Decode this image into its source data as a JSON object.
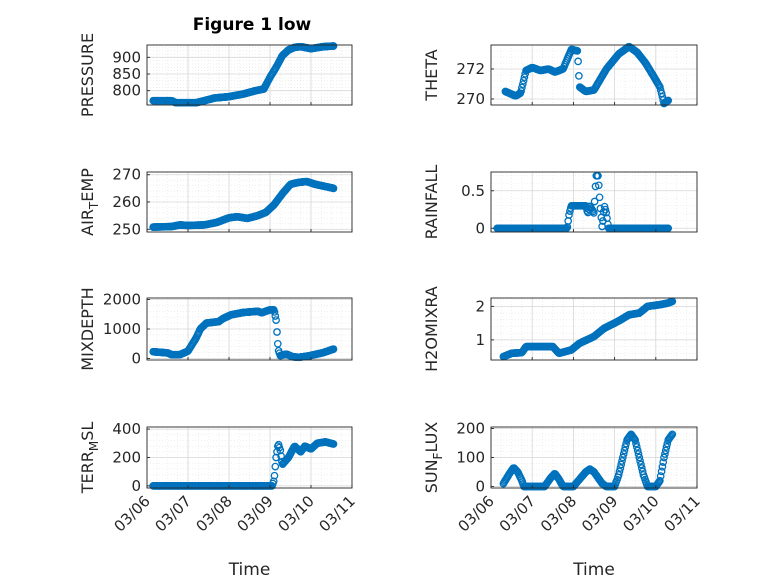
{
  "figure": {
    "title": "Figure 1 low",
    "marker_color": "#0072BD",
    "axis_color": "#262626",
    "grid_color": "#dcdcdc"
  },
  "chart_data": [
    {
      "type": "scatter",
      "title": "Figure 1 low",
      "ylabel": "PRESSURE",
      "ylabel_sub": [],
      "ylim": [
        757,
        937
      ],
      "yticks": [
        800,
        850,
        900
      ],
      "ytick_labels": [
        "800",
        "850",
        "900"
      ],
      "xlim": [
        0,
        5
      ],
      "xticks": [
        0,
        1,
        2,
        3,
        4,
        5
      ],
      "xtick_labels": [],
      "xlabel": "",
      "grid": true,
      "breaks": [
        [
          0.15,
          770
        ],
        [
          0.6,
          770
        ],
        [
          0.7,
          764
        ],
        [
          1.2,
          764
        ],
        [
          1.4,
          770
        ],
        [
          1.65,
          778
        ],
        [
          2.0,
          782
        ],
        [
          2.35,
          790
        ],
        [
          2.65,
          800
        ],
        [
          2.85,
          805
        ],
        [
          3.0,
          840
        ],
        [
          3.15,
          870
        ],
        [
          3.3,
          905
        ],
        [
          3.45,
          922
        ],
        [
          3.6,
          930
        ],
        [
          3.75,
          932
        ],
        [
          4.0,
          926
        ],
        [
          4.3,
          932
        ],
        [
          4.55,
          934
        ]
      ]
    },
    {
      "type": "scatter",
      "title": "",
      "ylabel": "THETA",
      "ylabel_sub": [],
      "ylim": [
        269.6,
        273.6
      ],
      "yticks": [
        270,
        272
      ],
      "ytick_labels": [
        "270",
        "272"
      ],
      "xlim": [
        0,
        5
      ],
      "xticks": [
        0,
        1,
        2,
        3,
        4,
        5
      ],
      "xtick_labels": [],
      "xlabel": "",
      "grid": true,
      "breaks": [
        [
          0.35,
          270.5
        ],
        [
          0.6,
          270.2
        ],
        [
          0.72,
          270.4
        ],
        [
          0.85,
          271.9
        ],
        [
          1.0,
          272.1
        ],
        [
          1.2,
          271.9
        ],
        [
          1.4,
          272.0
        ],
        [
          1.55,
          271.8
        ],
        [
          1.75,
          272.0
        ],
        [
          1.95,
          273.3
        ],
        [
          2.1,
          273.2
        ],
        [
          2.15,
          270.8
        ],
        [
          2.3,
          270.5
        ],
        [
          2.5,
          270.6
        ],
        [
          2.8,
          272.0
        ],
        [
          3.1,
          273.0
        ],
        [
          3.35,
          273.5
        ],
        [
          3.55,
          273.1
        ],
        [
          3.75,
          272.4
        ],
        [
          3.95,
          271.5
        ],
        [
          4.1,
          270.8
        ],
        [
          4.2,
          269.7
        ],
        [
          4.3,
          269.9
        ]
      ]
    },
    {
      "type": "scatter",
      "title": "",
      "ylabel": "AIR",
      "ylabel_sub": [
        "T",
        "EMP"
      ],
      "ylim": [
        249,
        271
      ],
      "yticks": [
        250,
        260,
        270
      ],
      "ytick_labels": [
        "250",
        "260",
        "270"
      ],
      "xlim": [
        0,
        5
      ],
      "xticks": [
        0,
        1,
        2,
        3,
        4,
        5
      ],
      "xtick_labels": [],
      "xlabel": "",
      "grid": true,
      "breaks": [
        [
          0.15,
          250.8
        ],
        [
          0.6,
          251.0
        ],
        [
          0.8,
          251.6
        ],
        [
          1.0,
          251.4
        ],
        [
          1.4,
          251.6
        ],
        [
          1.7,
          252.5
        ],
        [
          2.0,
          254.2
        ],
        [
          2.2,
          254.6
        ],
        [
          2.45,
          254.0
        ],
        [
          2.7,
          255.0
        ],
        [
          2.9,
          256.2
        ],
        [
          3.1,
          259.0
        ],
        [
          3.3,
          263.0
        ],
        [
          3.5,
          266.5
        ],
        [
          3.7,
          267.2
        ],
        [
          3.9,
          267.5
        ],
        [
          4.1,
          266.5
        ],
        [
          4.5,
          265.2
        ],
        [
          4.55,
          265.0
        ]
      ]
    },
    {
      "type": "scatter",
      "title": "",
      "ylabel": "RAINFALL",
      "ylabel_sub": [],
      "ylim": [
        -0.05,
        0.75
      ],
      "yticks": [
        0,
        0.5
      ],
      "ytick_labels": [
        "0",
        "0.5"
      ],
      "xlim": [
        0,
        5
      ],
      "xticks": [
        0,
        1,
        2,
        3,
        4,
        5
      ],
      "xtick_labels": [],
      "xlabel": "",
      "grid": true,
      "breaks": [
        [
          0.15,
          0
        ],
        [
          1.85,
          0
        ],
        [
          1.9,
          0.2
        ],
        [
          1.95,
          0.3
        ],
        [
          2.3,
          0.3
        ],
        [
          2.35,
          0.2
        ],
        [
          2.4,
          0.3
        ],
        [
          2.5,
          0.2
        ],
        [
          2.55,
          0.7
        ],
        [
          2.6,
          0.7
        ],
        [
          2.65,
          0.3
        ],
        [
          2.7,
          0
        ],
        [
          2.75,
          0.3
        ],
        [
          2.8,
          0.2
        ],
        [
          2.85,
          0
        ],
        [
          4.3,
          0
        ]
      ]
    },
    {
      "type": "scatter",
      "title": "",
      "ylabel": "MIXDEPTH",
      "ylabel_sub": [],
      "ylim": [
        -50,
        2050
      ],
      "yticks": [
        0,
        1000,
        2000
      ],
      "ytick_labels": [
        "0",
        "1000",
        "2000"
      ],
      "xlim": [
        0,
        5
      ],
      "xticks": [
        0,
        1,
        2,
        3,
        4,
        5
      ],
      "xtick_labels": [],
      "xlabel": "",
      "grid": true,
      "breaks": [
        [
          0.15,
          230
        ],
        [
          0.5,
          190
        ],
        [
          0.6,
          130
        ],
        [
          0.8,
          130
        ],
        [
          1.0,
          250
        ],
        [
          1.2,
          700
        ],
        [
          1.3,
          1000
        ],
        [
          1.45,
          1200
        ],
        [
          1.75,
          1250
        ],
        [
          1.85,
          1350
        ],
        [
          2.05,
          1480
        ],
        [
          2.35,
          1560
        ],
        [
          2.7,
          1600
        ],
        [
          2.8,
          1550
        ],
        [
          3.0,
          1650
        ],
        [
          3.1,
          1650
        ],
        [
          3.15,
          1300
        ],
        [
          3.2,
          300
        ],
        [
          3.25,
          100
        ],
        [
          3.4,
          150
        ],
        [
          3.55,
          60
        ],
        [
          3.7,
          40
        ],
        [
          3.95,
          90
        ],
        [
          4.3,
          200
        ],
        [
          4.55,
          320
        ]
      ]
    },
    {
      "type": "scatter",
      "title": "",
      "ylabel": "H2OMIXRA",
      "ylabel_sub": [],
      "ylim": [
        0.4,
        2.25
      ],
      "yticks": [
        1,
        2
      ],
      "ytick_labels": [
        "1",
        "2"
      ],
      "xlim": [
        0,
        5
      ],
      "xticks": [
        0,
        1,
        2,
        3,
        4,
        5
      ],
      "xtick_labels": [],
      "xlabel": "",
      "grid": true,
      "breaks": [
        [
          0.3,
          0.5
        ],
        [
          0.5,
          0.6
        ],
        [
          0.75,
          0.62
        ],
        [
          0.85,
          0.8
        ],
        [
          1.5,
          0.8
        ],
        [
          1.65,
          0.6
        ],
        [
          1.95,
          0.7
        ],
        [
          2.15,
          0.9
        ],
        [
          2.5,
          1.1
        ],
        [
          2.75,
          1.35
        ],
        [
          3.0,
          1.5
        ],
        [
          3.15,
          1.6
        ],
        [
          3.35,
          1.75
        ],
        [
          3.6,
          1.8
        ],
        [
          3.8,
          2.0
        ],
        [
          4.1,
          2.05
        ],
        [
          4.3,
          2.1
        ],
        [
          4.4,
          2.15
        ]
      ]
    },
    {
      "type": "scatter",
      "title": "",
      "ylabel": "TERR",
      "ylabel_sub": [
        "M",
        "SL"
      ],
      "ylim": [
        -15,
        415
      ],
      "yticks": [
        0,
        200,
        400
      ],
      "ytick_labels": [
        "0",
        "200",
        "400"
      ],
      "xlim": [
        0,
        5
      ],
      "xticks": [
        0,
        1,
        2,
        3,
        4,
        5
      ],
      "xtick_labels": [
        "03/06",
        "03/07",
        "03/08",
        "03/09",
        "03/10",
        "03/11"
      ],
      "xlabel": "Time",
      "grid": true,
      "breaks": [
        [
          0.15,
          0
        ],
        [
          3.05,
          0
        ],
        [
          3.1,
          40
        ],
        [
          3.15,
          200
        ],
        [
          3.2,
          300
        ],
        [
          3.25,
          250
        ],
        [
          3.3,
          150
        ],
        [
          3.45,
          200
        ],
        [
          3.6,
          280
        ],
        [
          3.75,
          240
        ],
        [
          3.85,
          280
        ],
        [
          4.0,
          260
        ],
        [
          4.15,
          300
        ],
        [
          4.35,
          310
        ],
        [
          4.55,
          295
        ]
      ]
    },
    {
      "type": "scatter",
      "title": "",
      "ylabel": "SUN",
      "ylabel_sub": [
        "F",
        "LUX"
      ],
      "ylim": [
        -5,
        205
      ],
      "yticks": [
        0,
        100,
        200
      ],
      "ytick_labels": [
        "0",
        "100",
        "200"
      ],
      "xlim": [
        0,
        5
      ],
      "xticks": [
        0,
        1,
        2,
        3,
        4,
        5
      ],
      "xtick_labels": [
        "03/06",
        "03/07",
        "03/08",
        "03/09",
        "03/10",
        "03/11"
      ],
      "xlabel": "Time",
      "grid": true,
      "breaks": [
        [
          0.3,
          10
        ],
        [
          0.45,
          45
        ],
        [
          0.55,
          65
        ],
        [
          0.65,
          50
        ],
        [
          0.75,
          20
        ],
        [
          0.8,
          0
        ],
        [
          1.3,
          0
        ],
        [
          1.45,
          30
        ],
        [
          1.55,
          45
        ],
        [
          1.65,
          25
        ],
        [
          1.75,
          0
        ],
        [
          2.0,
          0
        ],
        [
          2.3,
          50
        ],
        [
          2.4,
          60
        ],
        [
          2.5,
          50
        ],
        [
          2.7,
          10
        ],
        [
          2.8,
          0
        ],
        [
          3.0,
          0
        ],
        [
          3.1,
          40
        ],
        [
          3.2,
          100
        ],
        [
          3.3,
          160
        ],
        [
          3.4,
          180
        ],
        [
          3.5,
          160
        ],
        [
          3.6,
          100
        ],
        [
          3.7,
          40
        ],
        [
          3.8,
          0
        ],
        [
          4.0,
          0
        ],
        [
          4.1,
          20
        ],
        [
          4.2,
          100
        ],
        [
          4.3,
          160
        ],
        [
          4.4,
          180
        ]
      ]
    }
  ]
}
